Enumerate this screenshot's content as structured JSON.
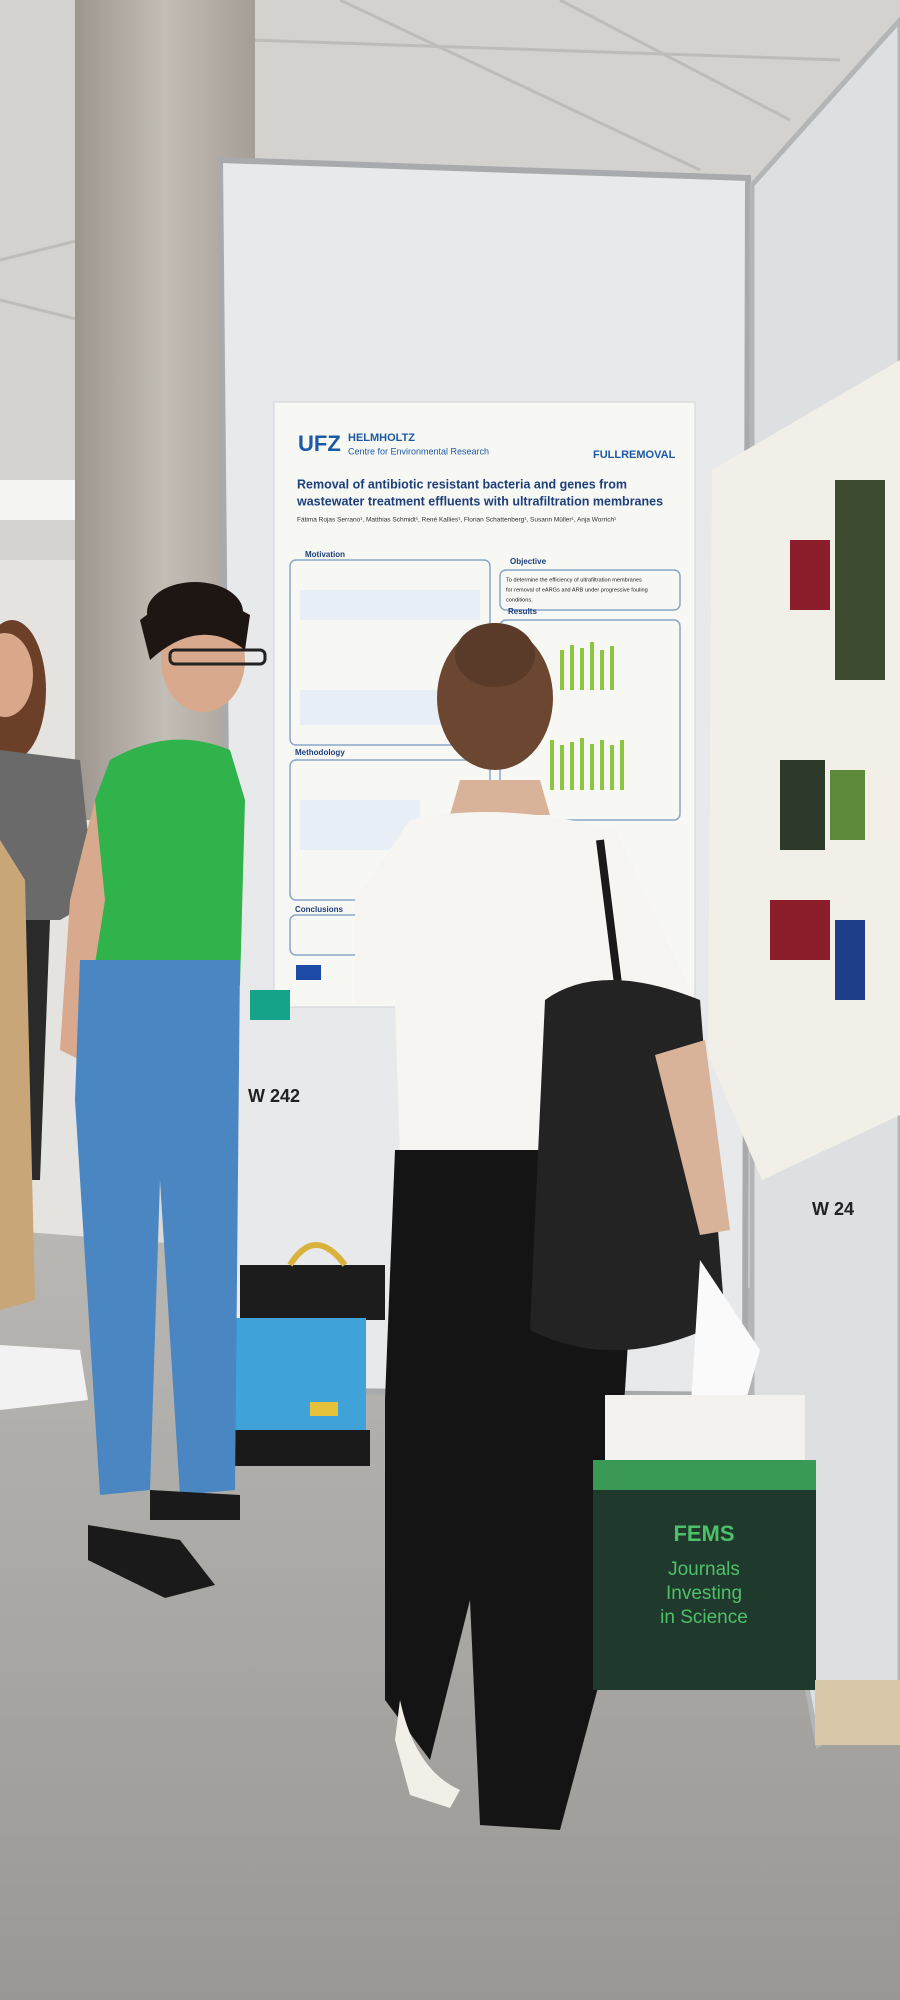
{
  "poster": {
    "logo": "UFZ",
    "institute_name": "HELMHOLTZ",
    "institute_subtitle": "Centre for Environmental Research",
    "project": "FULLREMOVAL",
    "title_lines": [
      "Removal of antibiotic resistant bacteria and genes from",
      "wastewater treatment effluents with ultrafiltration membranes"
    ],
    "authors": "Fátima Rojas Serrano¹, Matthias Schmidt¹, René Kallies¹, Florian Schattenberg¹, Susann Müller¹, Anja Worrich¹",
    "sections": [
      "Motivation",
      "Objective",
      "Results",
      "Methodology",
      "Conclusions"
    ],
    "objective_text": [
      "To determine the efficiency of ultrafiltration membranes",
      "for removal of eARGs and ARB under progressive fouling",
      "conditions."
    ]
  },
  "board_number": "W 242",
  "side_board_number": "W 24",
  "sponsor_box": {
    "brand": "FEMS",
    "slogan": [
      "Journals",
      "Investing",
      "in Science"
    ]
  }
}
